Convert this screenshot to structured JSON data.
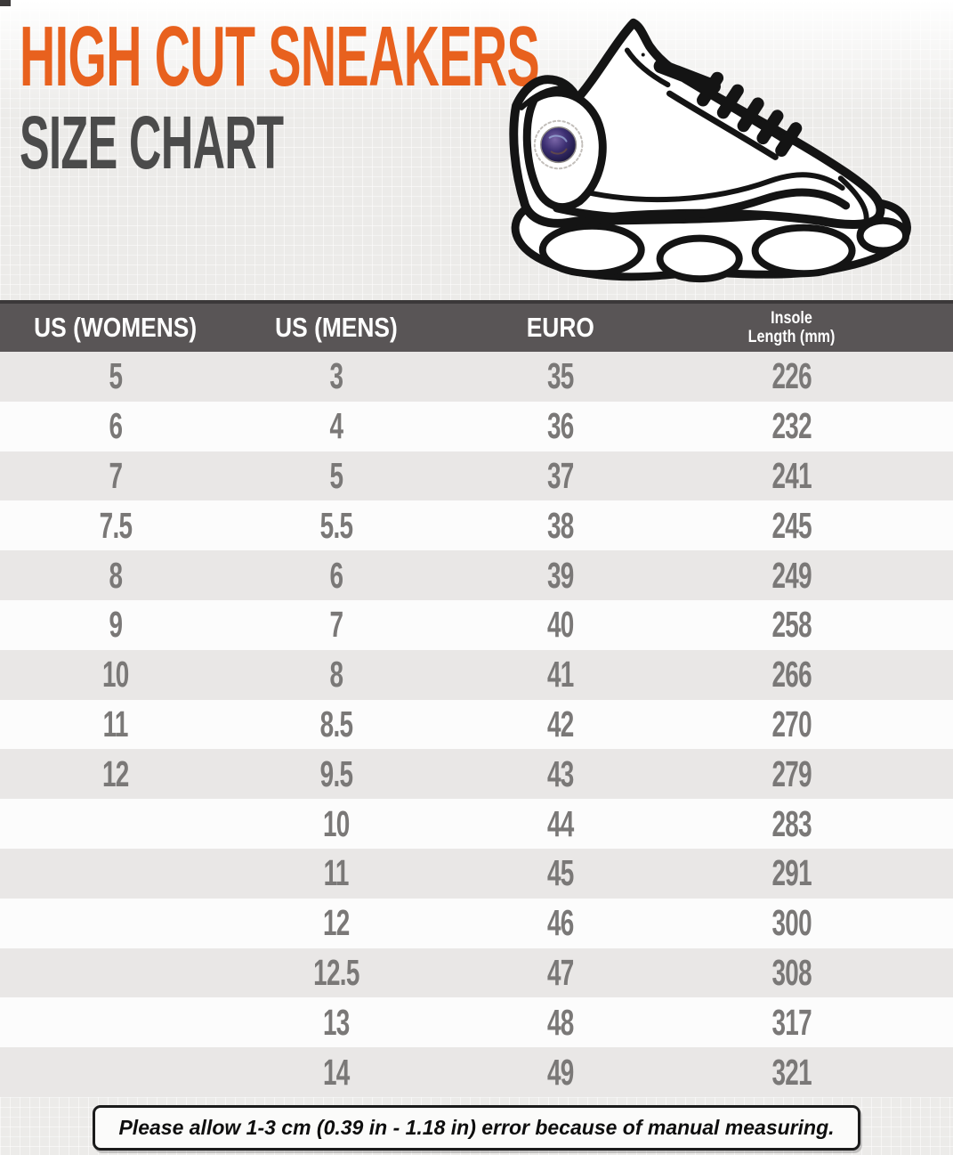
{
  "header": {
    "title_line1": "HIGH CUT SNEAKERS",
    "title_line2": "SIZE CHART"
  },
  "sneaker": {
    "icon": "high-top-sneaker-line-drawing"
  },
  "table": {
    "columns": [
      "US (WOMENS)",
      "US (MENS)",
      "EURO",
      "Insole Length (mm)"
    ],
    "insole_header": {
      "line1": "Insole",
      "line2": "Length (mm)"
    },
    "rows": [
      [
        "5",
        "3",
        "35",
        "226"
      ],
      [
        "6",
        "4",
        "36",
        "232"
      ],
      [
        "7",
        "5",
        "37",
        "241"
      ],
      [
        "7.5",
        "5.5",
        "38",
        "245"
      ],
      [
        "8",
        "6",
        "39",
        "249"
      ],
      [
        "9",
        "7",
        "40",
        "258"
      ],
      [
        "10",
        "8",
        "41",
        "266"
      ],
      [
        "11",
        "8.5",
        "42",
        "270"
      ],
      [
        "12",
        "9.5",
        "43",
        "279"
      ],
      [
        "",
        "10",
        "44",
        "283"
      ],
      [
        "",
        "11",
        "45",
        "291"
      ],
      [
        "",
        "12",
        "46",
        "300"
      ],
      [
        "",
        "12.5",
        "47",
        "308"
      ],
      [
        "",
        "13",
        "48",
        "317"
      ],
      [
        "",
        "14",
        "49",
        "321"
      ]
    ]
  },
  "footer": {
    "note": "Please allow 1-3 cm (0.39 in - 1.18 in) error because of manual measuring."
  },
  "colors": {
    "accent_orange": "#E8611E",
    "title_gray": "#4B4B4B",
    "header_band": "#595556",
    "row_gray": "#E9E7E6",
    "row_white": "#FCFCFC",
    "number_gray": "#7A7877",
    "page_bg": "#ECEBE9"
  }
}
